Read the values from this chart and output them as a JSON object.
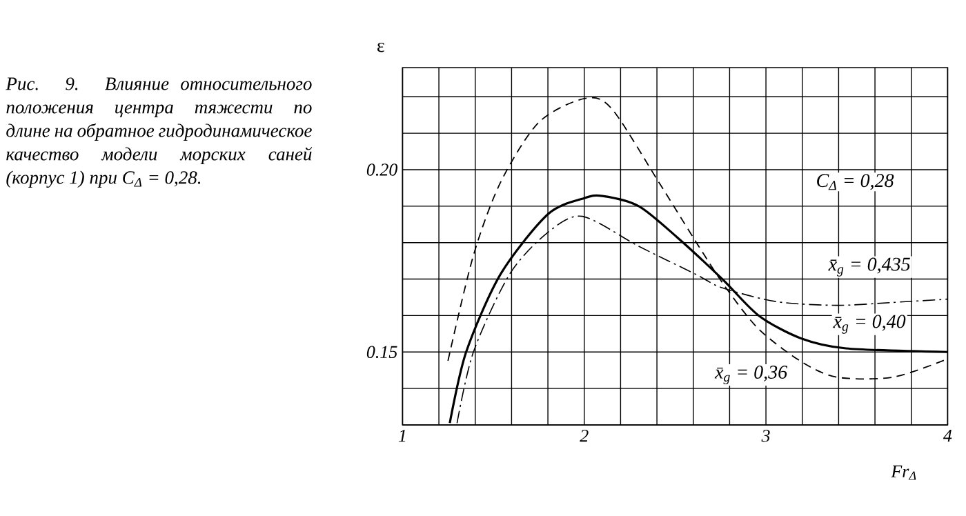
{
  "chart_data": {
    "type": "line",
    "title": "Рис. 9. Влияние относительного положения центра тяжести по длине на обратное гидродинамическое качество модели морских саней (корпус 1) при C$_{Δ}$ = 0,28.",
    "xlabel": "Fr$_{Δ}$",
    "ylabel": "ε",
    "annotations": [
      "C$_{Δ}$ = 0,28"
    ],
    "xlim": [
      1,
      4
    ],
    "ylim": [
      0.13,
      0.228
    ],
    "xticks": [
      1,
      {
        "value": 1.2,
        "label": null
      },
      {
        "value": 1.4,
        "label": null
      },
      {
        "value": 1.6,
        "label": null
      },
      {
        "value": 1.8,
        "label": null
      },
      2,
      {
        "value": 2.2,
        "label": null
      },
      {
        "value": 2.4,
        "label": null
      },
      {
        "value": 2.6,
        "label": null
      },
      {
        "value": 2.8,
        "label": null
      },
      3,
      {
        "value": 3.2,
        "label": null
      },
      {
        "value": 3.4,
        "label": null
      },
      {
        "value": 3.6,
        "label": null
      },
      {
        "value": 3.8,
        "label": null
      },
      4
    ],
    "yticks": [
      {
        "value": 0.13,
        "label": null
      },
      {
        "value": 0.14,
        "label": null
      },
      0.15,
      {
        "value": 0.16,
        "label": null
      },
      {
        "value": 0.17,
        "label": null
      },
      {
        "value": 0.18,
        "label": null
      },
      {
        "value": 0.19,
        "label": null
      },
      {
        "value": 0.2,
        "label": "0.20"
      },
      {
        "value": 0.21,
        "label": null
      },
      {
        "value": 0.22,
        "label": null
      }
    ],
    "grid": true,
    "legend": false,
    "series": [
      {
        "name": "x̄$_{g}$ = 0,36",
        "color": "#000000",
        "line_style": "dashed",
        "x": [
          1.25,
          1.39,
          1.54,
          1.75,
          2.0,
          2.15,
          2.41,
          2.63,
          2.78,
          2.96,
          3.19,
          3.39,
          3.7,
          4.0
        ],
        "values": [
          0.1476,
          0.1765,
          0.1966,
          0.213,
          0.2195,
          0.2168,
          0.1966,
          0.179,
          0.1676,
          0.1563,
          0.1475,
          0.1431,
          0.1431,
          0.1481
        ]
      },
      {
        "name": "x̄$_{g}$ = 0,40",
        "color": "#000000",
        "line_style": "solid",
        "x": [
          1.26,
          1.35,
          1.54,
          1.8,
          2.0,
          2.1,
          2.3,
          2.51,
          2.76,
          2.96,
          3.19,
          3.44,
          4.0
        ],
        "values": [
          0.1305,
          0.15,
          0.1714,
          0.1878,
          0.1922,
          0.1928,
          0.19,
          0.1815,
          0.17,
          0.16,
          0.1538,
          0.151,
          0.15
        ]
      },
      {
        "name": "x̄$_{g}$ = 0,435",
        "color": "#000000",
        "line_style": "dashdot",
        "x": [
          1.3,
          1.39,
          1.59,
          1.8,
          1.99,
          2.3,
          2.61,
          2.76,
          3.06,
          3.39,
          3.7,
          4.0
        ],
        "values": [
          0.1305,
          0.15,
          0.1714,
          0.1828,
          0.1872,
          0.179,
          0.1714,
          0.1676,
          0.1638,
          0.1628,
          0.1636,
          0.1645
        ]
      }
    ]
  }
}
